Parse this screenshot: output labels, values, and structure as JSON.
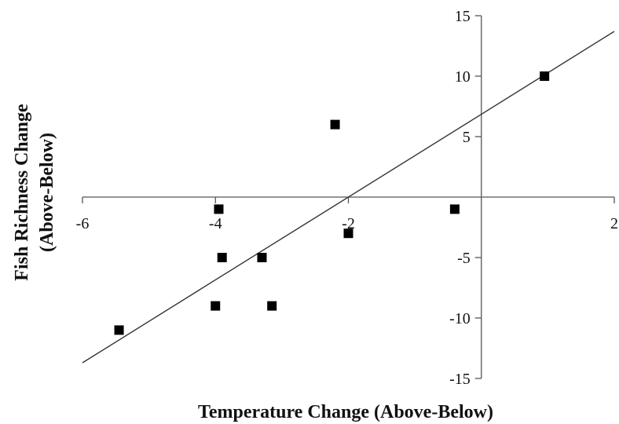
{
  "chart_data": {
    "type": "scatter",
    "title": "",
    "xlabel": "Temperature Change (Above-Below)",
    "ylabel_line1": "Fish Richness Change",
    "ylabel_line2": "(Above-Below)",
    "xlim": [
      -6,
      2
    ],
    "ylim": [
      -15,
      15
    ],
    "x_ticks": [
      -6,
      -4,
      -2,
      2
    ],
    "y_ticks": [
      15,
      10,
      5,
      -5,
      -10,
      -15
    ],
    "grid": false,
    "legend": "none",
    "marker": "square",
    "marker_color": "#000000",
    "series": [
      {
        "points": [
          {
            "x": -5.45,
            "y": -11
          },
          {
            "x": -4.0,
            "y": -9
          },
          {
            "x": -3.15,
            "y": -9
          },
          {
            "x": -3.9,
            "y": -5
          },
          {
            "x": -3.3,
            "y": -5
          },
          {
            "x": -3.95,
            "y": -1
          },
          {
            "x": -2.0,
            "y": -3
          },
          {
            "x": -2.2,
            "y": 6
          },
          {
            "x": -0.4,
            "y": -1
          },
          {
            "x": 0.95,
            "y": 10
          }
        ]
      }
    ],
    "trendline": {
      "x": [
        -6,
        2
      ],
      "y": [
        -13.7,
        13.7
      ]
    }
  }
}
